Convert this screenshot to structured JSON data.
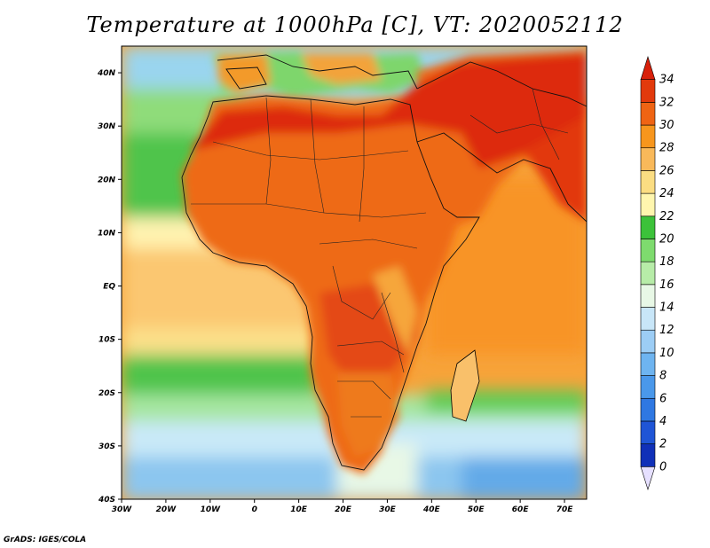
{
  "title": "Temperature at 1000hPa [C], VT: 2020052112",
  "credit": "GrADS: IGES/COLA",
  "axes": {
    "lat_labels": [
      "40N",
      "30N",
      "20N",
      "10N",
      "EQ",
      "10S",
      "20S",
      "30S",
      "40S"
    ],
    "lon_labels": [
      "30W",
      "20W",
      "10W",
      "0",
      "10E",
      "20E",
      "30E",
      "40E",
      "50E",
      "60E",
      "70E"
    ]
  },
  "colorbar": {
    "levels": [
      "0",
      "2",
      "4",
      "6",
      "8",
      "10",
      "12",
      "14",
      "16",
      "18",
      "20",
      "22",
      "24",
      "26",
      "28",
      "30",
      "32",
      "34"
    ],
    "colors": [
      "#0c0c7a",
      "#1030b8",
      "#1f55d6",
      "#2f78e2",
      "#4a98ea",
      "#6eb4f0",
      "#9ccdf5",
      "#c8e6f8",
      "#e8f8e6",
      "#b7eca8",
      "#7edb6e",
      "#3cc23a",
      "#fff6ae",
      "#fbdd82",
      "#f9b95a",
      "#f7961d",
      "#ef6414",
      "#e23a0c",
      "#d8200a"
    ]
  },
  "map": {
    "lon_range": [
      -30,
      75
    ],
    "lat_range": [
      -40,
      45
    ],
    "variable": "Temperature",
    "level": "1000hPa",
    "units": "C"
  }
}
